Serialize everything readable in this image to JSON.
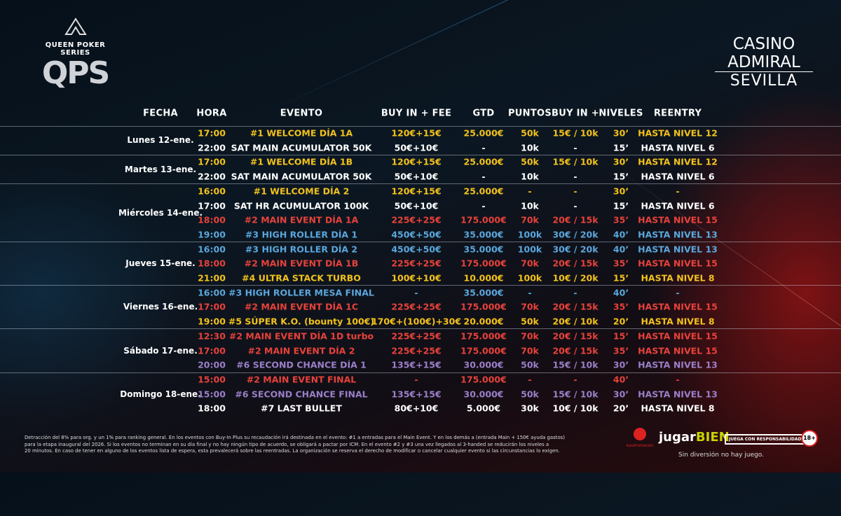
{
  "header": {
    "series_name": "QUEEN POKER SERIES",
    "series_logo": "QPS",
    "casino_line1": "CASINO",
    "casino_line2": "ADMIRAL",
    "casino_city": "SEVILLA"
  },
  "table": {
    "columns": [
      "FECHA",
      "HORA",
      "EVENTO",
      "BUY IN + FEE",
      "GTD",
      "PUNTOS",
      "BUY IN +",
      "NIVELES",
      "REENTRY"
    ],
    "days": [
      {
        "date": "Lunes 12-ene.",
        "rows": [
          {
            "time": "17:00",
            "event": "#1 WELCOME DÍA 1A",
            "buy_in": "120€+15€",
            "gtd": "25.000€",
            "points": "50k",
            "buy_in_plus": "15€ / 10k",
            "levels": "30’",
            "reentry": "HASTA NIVEL 12",
            "color": "#f2c21b"
          },
          {
            "time": "22:00",
            "event": "SAT MAIN ACUMULATOR 50K",
            "buy_in": "50€+10€",
            "gtd": "-",
            "points": "10k",
            "buy_in_plus": "-",
            "levels": "15’",
            "reentry": "HASTA NIVEL 6",
            "color": "#ffffff"
          }
        ]
      },
      {
        "date": "Martes 13-ene.",
        "rows": [
          {
            "time": "17:00",
            "event": "#1 WELCOME DÍA 1B",
            "buy_in": "120€+15€",
            "gtd": "25.000€",
            "points": "50k",
            "buy_in_plus": "15€ / 10k",
            "levels": "30’",
            "reentry": "HASTA NIVEL 12",
            "color": "#f2c21b"
          },
          {
            "time": "22:00",
            "event": "SAT MAIN ACUMULATOR 50K",
            "buy_in": "50€+10€",
            "gtd": "-",
            "points": "10k",
            "buy_in_plus": "-",
            "levels": "15’",
            "reentry": "HASTA NIVEL 6",
            "color": "#ffffff"
          }
        ]
      },
      {
        "date": "Miércoles 14-ene.",
        "rows": [
          {
            "time": "16:00",
            "event": "#1 WELCOME DÍA 2",
            "buy_in": "120€+15€",
            "gtd": "25.000€",
            "points": "-",
            "buy_in_plus": "-",
            "levels": "30’",
            "reentry": "-",
            "color": "#f2c21b"
          },
          {
            "time": "17:00",
            "event": "SAT HR ACUMULATOR 100K",
            "buy_in": "50€+10€",
            "gtd": "-",
            "points": "10k",
            "buy_in_plus": "-",
            "levels": "15’",
            "reentry": "HASTA NIVEL 6",
            "color": "#ffffff"
          },
          {
            "time": "18:00",
            "event": "#2 MAIN EVENT DÍA 1A",
            "buy_in": "225€+25€",
            "gtd": "175.000€",
            "points": "70k",
            "buy_in_plus": "20€ / 15k",
            "levels": "35’",
            "reentry": "HASTA NIVEL 15",
            "color": "#e8423a"
          },
          {
            "time": "19:00",
            "event": "#3 HIGH ROLLER DÍA 1",
            "buy_in": "450€+50€",
            "gtd": "35.000€",
            "points": "100k",
            "buy_in_plus": "30€ / 20k",
            "levels": "40’",
            "reentry": "HASTA NIVEL 13",
            "color": "#5aa7dc"
          }
        ]
      },
      {
        "date": "Jueves 15-ene.",
        "rows": [
          {
            "time": "16:00",
            "event": "#3 HIGH ROLLER DÍA 2",
            "buy_in": "450€+50€",
            "gtd": "35.000€",
            "points": "100k",
            "buy_in_plus": "30€ / 20k",
            "levels": "40’",
            "reentry": "HASTA NIVEL 13",
            "color": "#5aa7dc"
          },
          {
            "time": "18:00",
            "event": "#2 MAIN EVENT DÍA 1B",
            "buy_in": "225€+25€",
            "gtd": "175.000€",
            "points": "70k",
            "buy_in_plus": "20€ / 15k",
            "levels": "35’",
            "reentry": "HASTA NIVEL 15",
            "color": "#e8423a"
          },
          {
            "time": "21:00",
            "event": "#4 ULTRA STACK TURBO",
            "buy_in": "100€+10€",
            "gtd": "10.000€",
            "points": "100k",
            "buy_in_plus": "10€ / 20k",
            "levels": "15’",
            "reentry": "HASTA NIVEL 8",
            "color": "#f2c21b"
          }
        ]
      },
      {
        "date": "Viernes 16-ene.",
        "rows": [
          {
            "time": "16:00",
            "event": "#3 HIGH ROLLER MESA FINAL",
            "buy_in": "-",
            "gtd": "35.000€",
            "points": "-",
            "buy_in_plus": "-",
            "levels": "40’",
            "reentry": "-",
            "color": "#5aa7dc"
          },
          {
            "time": "17:00",
            "event": "#2 MAIN EVENT DÍA 1C",
            "buy_in": "225€+25€",
            "gtd": "175.000€",
            "points": "70k",
            "buy_in_plus": "20€ / 15k",
            "levels": "35’",
            "reentry": "HASTA NIVEL 15",
            "color": "#e8423a"
          },
          {
            "time": "19:00",
            "event": "#5 SÚPER K.O. (bounty 100€)",
            "buy_in": "170€+(100€)+30€",
            "gtd": "20.000€",
            "points": "50k",
            "buy_in_plus": "20€ / 10k",
            "levels": "20’",
            "reentry": "HASTA NIVEL 8",
            "color": "#f2c21b"
          }
        ]
      },
      {
        "date": "Sábado 17-ene.",
        "rows": [
          {
            "time": "12:30",
            "event": "#2 MAIN EVENT DÍA 1D turbo",
            "buy_in": "225€+25€",
            "gtd": "175.000€",
            "points": "70k",
            "buy_in_plus": "20€ / 15k",
            "levels": "15’",
            "reentry": "HASTA NIVEL 15",
            "color": "#e8423a"
          },
          {
            "time": "17:00",
            "event": "#2 MAIN EVENT DÍA 2",
            "buy_in": "225€+25€",
            "gtd": "175.000€",
            "points": "70k",
            "buy_in_plus": "20€ / 15k",
            "levels": "35’",
            "reentry": "HASTA NIVEL 15",
            "color": "#e8423a"
          },
          {
            "time": "20:00",
            "event": "#6 SECOND CHANCE DÍA 1",
            "buy_in": "135€+15€",
            "gtd": "30.000€",
            "points": "50k",
            "buy_in_plus": "15€ / 10k",
            "levels": "30’",
            "reentry": "HASTA NIVEL 13",
            "color": "#9b7fc9"
          }
        ]
      },
      {
        "date": "Domingo 18-ene.",
        "rows": [
          {
            "time": "15:00",
            "event": "#2 MAIN EVENT FINAL",
            "buy_in": "-",
            "gtd": "175.000€",
            "points": "-",
            "buy_in_plus": "-",
            "levels": "40’",
            "reentry": "-",
            "color": "#e8423a"
          },
          {
            "time": "15:00",
            "event": "#6 SECOND CHANCE FINAL",
            "buy_in": "135€+15€",
            "gtd": "30.000€",
            "points": "50k",
            "buy_in_plus": "15€ / 10k",
            "levels": "30’",
            "reentry": "HASTA NIVEL 13",
            "color": "#9b7fc9"
          },
          {
            "time": "18:00",
            "event": "#7 LAST BULLET",
            "buy_in": "80€+10€",
            "gtd": "5.000€",
            "points": "30k",
            "buy_in_plus": "10€ / 10k",
            "levels": "20’",
            "reentry": "HASTA NIVEL 8",
            "color": "#ffffff"
          }
        ]
      }
    ]
  },
  "footer": {
    "notes": [
      "Detracción del 8% para org. y un 1% para ranking general. En los eventos con Buy-In Plus su recaudación irá destinada en el evento: #1 a entradas para el Main Event. Y en los demás a (entrada Main + 150€ ayuda gastos)",
      "para la etapa inaugural del 2026. Si los eventos no terminan en su día final y no hay ningún tipo de acuerdo, se obligará a pactar por ICM. En el evento #2 y #3 una vez llegados al 3-handed se reducirán los niveles a",
      "20 minutos. En caso de tener en alguno de los eventos lista de espera, esta prevalecerá sobre las reentradas. La organización se reserva el derecho de modificar o cancelar cualquier evento si las circunstancias lo exigen."
    ],
    "autoprohibicion": "AutoProhibición",
    "jugar_bien_1": "jugar",
    "jugar_bien_2": "BIEN",
    "responsible": "JUEGA CON RESPONSABILIDAD",
    "age": "18+",
    "slogan": "Sin diversión no hay juego."
  }
}
